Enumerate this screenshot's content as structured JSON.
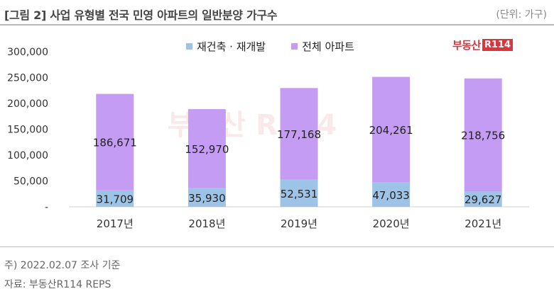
{
  "header": {
    "title": "[그림 2] 사업 유형별 전국 민영 아파트의 일반분양 가구수",
    "unit": "(단위: 가구)"
  },
  "logo": {
    "text": "부동산",
    "box": "R114",
    "watermark": "부동산 R114"
  },
  "footnotes": {
    "note": "주) 2022.02.07 조사 기준",
    "source": "자료: 부동산R114 REPS"
  },
  "colors": {
    "redevelopment": "#9dc3e6",
    "all": "#c59cf3",
    "brand": "#d9363e"
  },
  "chart_data": {
    "type": "bar",
    "stacked": true,
    "categories": [
      "2017년",
      "2018년",
      "2019년",
      "2020년",
      "2021년"
    ],
    "series": [
      {
        "name": "재건축 · 재개발",
        "values": [
          31709,
          35930,
          52531,
          47033,
          29627
        ],
        "labels": [
          "31,709",
          "35,930",
          "52,531",
          "47,033",
          "29,627"
        ]
      },
      {
        "name": "전체 아파트",
        "values": [
          186671,
          152970,
          177168,
          204261,
          218756
        ],
        "labels": [
          "186,671",
          "152,970",
          "177,168",
          "204,261",
          "218,756"
        ]
      }
    ],
    "ylim": [
      0,
      300000
    ],
    "yticks": [
      "-",
      "50,000",
      "100,000",
      "150,000",
      "200,000",
      "250,000",
      "300,000"
    ],
    "legend": "top",
    "grid": false
  }
}
